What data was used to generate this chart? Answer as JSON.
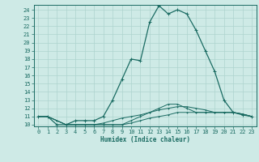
{
  "xlabel": "Humidex (Indice chaleur)",
  "x_ticks": [
    0,
    1,
    2,
    3,
    4,
    5,
    6,
    7,
    8,
    9,
    10,
    11,
    12,
    13,
    14,
    15,
    16,
    17,
    18,
    19,
    20,
    21,
    22,
    23
  ],
  "ylim": [
    9.8,
    24.6
  ],
  "xlim": [
    -0.5,
    23.5
  ],
  "y_ticks": [
    10,
    11,
    12,
    13,
    14,
    15,
    16,
    17,
    18,
    19,
    20,
    21,
    22,
    23,
    24
  ],
  "bg_color": "#ceeae6",
  "line_color": "#1a6b62",
  "grid_color": "#aed4cf",
  "main_line": [
    11.0,
    11.0,
    10.0,
    10.0,
    10.5,
    10.5,
    10.5,
    11.0,
    13.0,
    15.5,
    18.0,
    17.8,
    22.5,
    24.5,
    23.5,
    24.0,
    23.5,
    21.5,
    19.0,
    16.5,
    13.0,
    11.5,
    11.2,
    11.0
  ],
  "low_line1": [
    11.0,
    11.0,
    10.5,
    10.0,
    10.0,
    10.0,
    10.0,
    10.0,
    10.0,
    10.0,
    10.2,
    10.5,
    10.8,
    11.0,
    11.2,
    11.5,
    11.5,
    11.5,
    11.5,
    11.5,
    11.5,
    11.5,
    11.3,
    11.0
  ],
  "low_line2": [
    11.0,
    11.0,
    10.5,
    10.0,
    10.0,
    10.0,
    10.0,
    10.0,
    10.0,
    10.0,
    10.5,
    11.0,
    11.5,
    12.0,
    12.5,
    12.5,
    12.0,
    11.5,
    11.5,
    11.5,
    11.5,
    11.5,
    11.3,
    11.0
  ],
  "low_line3": [
    11.0,
    11.0,
    10.5,
    10.0,
    10.0,
    10.0,
    10.0,
    10.2,
    10.5,
    10.8,
    11.0,
    11.2,
    11.5,
    11.8,
    12.0,
    12.2,
    12.2,
    12.0,
    11.8,
    11.5,
    11.5,
    11.5,
    11.3,
    11.0
  ]
}
